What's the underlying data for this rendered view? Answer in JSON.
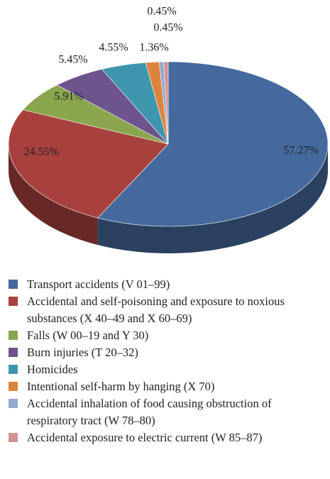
{
  "chart_data": {
    "type": "pie",
    "categories": [
      "Transport accidents (V 01–99)",
      "Accidental and self-poisoning and exposure to noxious substances (X 40–49 and X 60–69)",
      "Falls (W 00–19 and Y 30)",
      "Burn injuries (T 20–32)",
      "Homicides",
      "Intentional self-harm by hanging (X 70)",
      "Accidental inhalation of food causing obstruction of respiratory tract (W 78–80)",
      "Accidental exposure to electric current (W 85–87)"
    ],
    "values": [
      57.27,
      24.55,
      5.91,
      5.45,
      4.55,
      1.36,
      0.45,
      0.45
    ],
    "value_labels": [
      "57.27%",
      "24.55%",
      "5.91%",
      "5.45%",
      "4.55%",
      "1.36%",
      "0.45%",
      "0.45%"
    ],
    "colors": [
      "#44699d",
      "#a8413e",
      "#89a54e",
      "#6e548d",
      "#3d96ae",
      "#db843d",
      "#93a9cf",
      "#d19392"
    ],
    "legend": "bottom"
  }
}
